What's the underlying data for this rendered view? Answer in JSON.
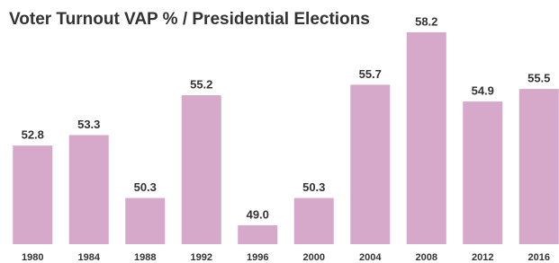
{
  "chart_data": {
    "type": "bar",
    "title": "Voter Turnout VAP % / Presidential Elections",
    "categories": [
      "1980",
      "1984",
      "1988",
      "1992",
      "1996",
      "2000",
      "2004",
      "2008",
      "2012",
      "2016"
    ],
    "values": [
      52.8,
      53.3,
      50.3,
      55.2,
      49.0,
      50.3,
      55.7,
      58.2,
      54.9,
      55.5
    ],
    "value_labels": [
      "52.8",
      "53.3",
      "50.3",
      "55.2",
      "49.0",
      "50.3",
      "55.7",
      "58.2",
      "54.9",
      "55.5"
    ],
    "color": "#d6a8ca",
    "ylim": [
      48.1,
      58.2
    ]
  }
}
